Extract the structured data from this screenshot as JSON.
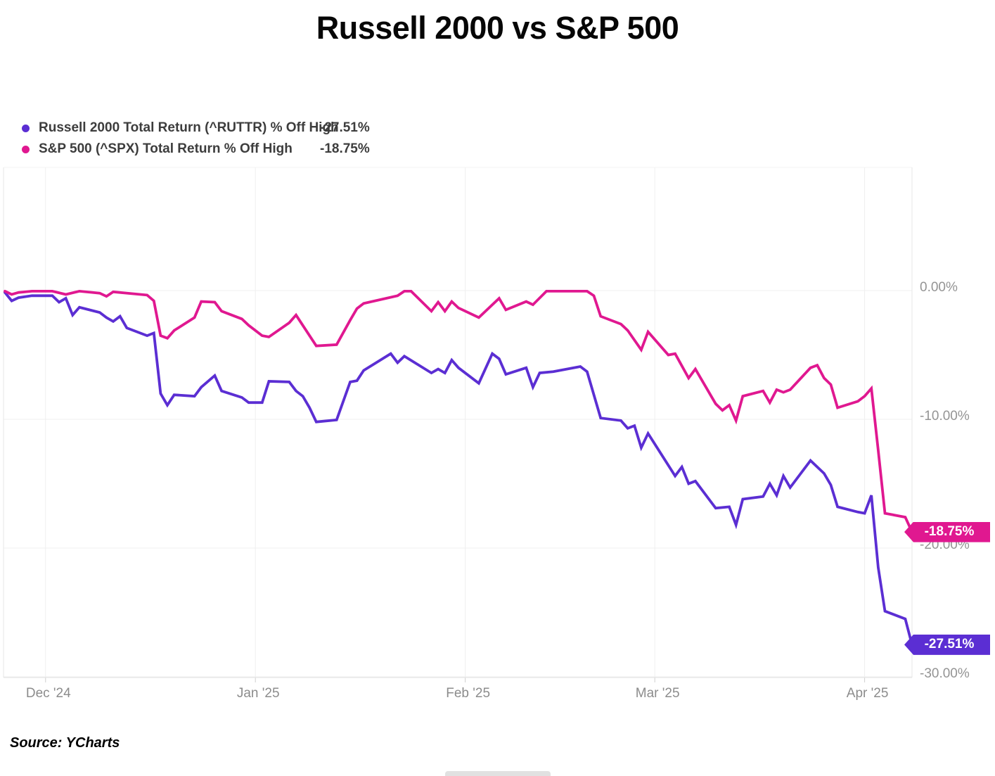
{
  "header": {
    "title": "Russell 2000 vs S&P 500"
  },
  "legend": {
    "items": [
      {
        "label": "Russell 2000 Total Return (^RUTTR) % Off High",
        "value": "-27.51%",
        "color": "#5b2ed3"
      },
      {
        "label": "S&P 500 (^SPX) Total Return % Off High",
        "value": "-18.75%",
        "color": "#e01890"
      }
    ]
  },
  "end_badges": [
    {
      "text": "-18.75%",
      "value": -18.75,
      "color": "#e01890"
    },
    {
      "text": "-27.51%",
      "value": -27.51,
      "color": "#5b2ed3"
    }
  ],
  "footer": {
    "source": "Source: YCharts"
  },
  "colors": {
    "russell_line": "#5b2ed3",
    "spx_line": "#e01890",
    "grid": "#efefef",
    "plot_border": "#e7e7e7",
    "axis_bottom": "#e2e2e2",
    "tick_stub": "#cfcfcf",
    "y_tick_text": "#949494",
    "x_tick_text": "#8c8c8c"
  },
  "chart_data": {
    "type": "line",
    "title": "Russell 2000 vs S&P 500",
    "grid": true,
    "legend_position": "top-left",
    "x_axis": {
      "range": [
        "2024-11-25",
        "2025-04-08"
      ],
      "ticks": [
        {
          "label": "Dec '24",
          "date": "2024-12-01"
        },
        {
          "label": "Jan '25",
          "date": "2025-01-01"
        },
        {
          "label": "Feb '25",
          "date": "2025-02-01"
        },
        {
          "label": "Mar '25",
          "date": "2025-03-01"
        },
        {
          "label": "Apr '25",
          "date": "2025-04-01"
        }
      ]
    },
    "y_axis": {
      "unit": "% off high",
      "max": 9.6,
      "min": -30.1,
      "ticks": [
        {
          "label": "0.00%",
          "value": 0
        },
        {
          "label": "-10.00%",
          "value": -10
        },
        {
          "label": "-20.00%",
          "value": -20
        },
        {
          "label": "-30.00%",
          "value": -30
        }
      ]
    },
    "series": [
      {
        "name": "Russell 2000 Total Return (^RUTTR) % Off High",
        "ticker": "^RUTTR",
        "color": "#5b2ed3",
        "last_value": -27.51,
        "points": [
          [
            "2024-11-25",
            -0.15
          ],
          [
            "2024-11-26",
            -0.8
          ],
          [
            "2024-11-27",
            -0.55
          ],
          [
            "2024-11-29",
            -0.4
          ],
          [
            "2024-12-02",
            -0.4
          ],
          [
            "2024-12-03",
            -0.9
          ],
          [
            "2024-12-04",
            -0.6
          ],
          [
            "2024-12-05",
            -1.9
          ],
          [
            "2024-12-06",
            -1.3
          ],
          [
            "2024-12-09",
            -1.7
          ],
          [
            "2024-12-10",
            -2.1
          ],
          [
            "2024-12-11",
            -2.4
          ],
          [
            "2024-12-12",
            -2.0
          ],
          [
            "2024-12-13",
            -2.9
          ],
          [
            "2024-12-16",
            -3.5
          ],
          [
            "2024-12-17",
            -3.3
          ],
          [
            "2024-12-18",
            -8.0
          ],
          [
            "2024-12-19",
            -8.9
          ],
          [
            "2024-12-20",
            -8.1
          ],
          [
            "2024-12-23",
            -8.2
          ],
          [
            "2024-12-24",
            -7.5
          ],
          [
            "2024-12-26",
            -6.6
          ],
          [
            "2024-12-27",
            -7.8
          ],
          [
            "2024-12-30",
            -8.3
          ],
          [
            "2024-12-31",
            -8.7
          ],
          [
            "2025-01-02",
            -8.7
          ],
          [
            "2025-01-03",
            -7.05
          ],
          [
            "2025-01-06",
            -7.1
          ],
          [
            "2025-01-07",
            -7.8
          ],
          [
            "2025-01-08",
            -8.2
          ],
          [
            "2025-01-09",
            -9.1
          ],
          [
            "2025-01-10",
            -10.2
          ],
          [
            "2025-01-13",
            -10.05
          ],
          [
            "2025-01-15",
            -7.1
          ],
          [
            "2025-01-16",
            -7.0
          ],
          [
            "2025-01-17",
            -6.2
          ],
          [
            "2025-01-21",
            -4.9
          ],
          [
            "2025-01-22",
            -5.6
          ],
          [
            "2025-01-23",
            -5.1
          ],
          [
            "2025-01-27",
            -6.4
          ],
          [
            "2025-01-28",
            -6.1
          ],
          [
            "2025-01-29",
            -6.4
          ],
          [
            "2025-01-30",
            -5.4
          ],
          [
            "2025-01-31",
            -6.0
          ],
          [
            "2025-02-03",
            -7.2
          ],
          [
            "2025-02-05",
            -4.9
          ],
          [
            "2025-02-06",
            -5.3
          ],
          [
            "2025-02-07",
            -6.5
          ],
          [
            "2025-02-10",
            -6.0
          ],
          [
            "2025-02-11",
            -7.5
          ],
          [
            "2025-02-12",
            -6.4
          ],
          [
            "2025-02-14",
            -6.3
          ],
          [
            "2025-02-18",
            -5.9
          ],
          [
            "2025-02-19",
            -6.3
          ],
          [
            "2025-02-21",
            -9.9
          ],
          [
            "2025-02-24",
            -10.1
          ],
          [
            "2025-02-25",
            -10.7
          ],
          [
            "2025-02-26",
            -10.5
          ],
          [
            "2025-02-27",
            -12.2
          ],
          [
            "2025-02-28",
            -11.1
          ],
          [
            "2025-03-04",
            -14.4
          ],
          [
            "2025-03-05",
            -13.7
          ],
          [
            "2025-03-06",
            -15.0
          ],
          [
            "2025-03-07",
            -14.8
          ],
          [
            "2025-03-10",
            -16.9
          ],
          [
            "2025-03-12",
            -16.8
          ],
          [
            "2025-03-13",
            -18.2
          ],
          [
            "2025-03-14",
            -16.2
          ],
          [
            "2025-03-17",
            -16.0
          ],
          [
            "2025-03-18",
            -15.0
          ],
          [
            "2025-03-19",
            -15.9
          ],
          [
            "2025-03-20",
            -14.4
          ],
          [
            "2025-03-21",
            -15.3
          ],
          [
            "2025-03-24",
            -13.2
          ],
          [
            "2025-03-26",
            -14.2
          ],
          [
            "2025-03-27",
            -15.1
          ],
          [
            "2025-03-28",
            -16.8
          ],
          [
            "2025-03-31",
            -17.2
          ],
          [
            "2025-04-01",
            -17.3
          ],
          [
            "2025-04-02",
            -15.9
          ],
          [
            "2025-04-03",
            -21.5
          ],
          [
            "2025-04-04",
            -24.9
          ],
          [
            "2025-04-07",
            -25.5
          ],
          [
            "2025-04-08",
            -27.51
          ]
        ]
      },
      {
        "name": "S&P 500 (^SPX) Total Return % Off High",
        "ticker": "^SPX",
        "color": "#e01890",
        "last_value": -18.75,
        "points": [
          [
            "2024-11-25",
            -0.05
          ],
          [
            "2024-11-26",
            -0.3
          ],
          [
            "2024-11-27",
            -0.15
          ],
          [
            "2024-11-29",
            -0.05
          ],
          [
            "2024-12-02",
            -0.05
          ],
          [
            "2024-12-04",
            -0.3
          ],
          [
            "2024-12-06",
            -0.05
          ],
          [
            "2024-12-09",
            -0.2
          ],
          [
            "2024-12-10",
            -0.45
          ],
          [
            "2024-12-11",
            -0.1
          ],
          [
            "2024-12-16",
            -0.35
          ],
          [
            "2024-12-17",
            -0.8
          ],
          [
            "2024-12-18",
            -3.5
          ],
          [
            "2024-12-19",
            -3.7
          ],
          [
            "2024-12-20",
            -3.1
          ],
          [
            "2024-12-23",
            -2.1
          ],
          [
            "2024-12-24",
            -0.85
          ],
          [
            "2024-12-26",
            -0.9
          ],
          [
            "2024-12-27",
            -1.6
          ],
          [
            "2024-12-30",
            -2.2
          ],
          [
            "2024-12-31",
            -2.7
          ],
          [
            "2025-01-02",
            -3.5
          ],
          [
            "2025-01-03",
            -3.6
          ],
          [
            "2025-01-06",
            -2.5
          ],
          [
            "2025-01-07",
            -1.9
          ],
          [
            "2025-01-08",
            -2.7
          ],
          [
            "2025-01-10",
            -4.3
          ],
          [
            "2025-01-13",
            -4.2
          ],
          [
            "2025-01-15",
            -2.3
          ],
          [
            "2025-01-16",
            -1.4
          ],
          [
            "2025-01-17",
            -1.0
          ],
          [
            "2025-01-22",
            -0.4
          ],
          [
            "2025-01-23",
            -0.05
          ],
          [
            "2025-01-24",
            -0.05
          ],
          [
            "2025-01-27",
            -1.6
          ],
          [
            "2025-01-28",
            -0.9
          ],
          [
            "2025-01-29",
            -1.6
          ],
          [
            "2025-01-30",
            -0.85
          ],
          [
            "2025-01-31",
            -1.35
          ],
          [
            "2025-02-03",
            -2.1
          ],
          [
            "2025-02-06",
            -0.6
          ],
          [
            "2025-02-07",
            -1.5
          ],
          [
            "2025-02-10",
            -0.85
          ],
          [
            "2025-02-11",
            -1.1
          ],
          [
            "2025-02-13",
            -0.05
          ],
          [
            "2025-02-19",
            -0.05
          ],
          [
            "2025-02-20",
            -0.4
          ],
          [
            "2025-02-21",
            -2.0
          ],
          [
            "2025-02-24",
            -2.6
          ],
          [
            "2025-02-25",
            -3.1
          ],
          [
            "2025-02-27",
            -4.6
          ],
          [
            "2025-02-28",
            -3.2
          ],
          [
            "2025-03-03",
            -5.0
          ],
          [
            "2025-03-04",
            -4.9
          ],
          [
            "2025-03-06",
            -6.8
          ],
          [
            "2025-03-07",
            -6.1
          ],
          [
            "2025-03-10",
            -8.8
          ],
          [
            "2025-03-11",
            -9.3
          ],
          [
            "2025-03-12",
            -8.9
          ],
          [
            "2025-03-13",
            -10.1
          ],
          [
            "2025-03-14",
            -8.2
          ],
          [
            "2025-03-17",
            -7.8
          ],
          [
            "2025-03-18",
            -8.7
          ],
          [
            "2025-03-19",
            -7.7
          ],
          [
            "2025-03-20",
            -7.9
          ],
          [
            "2025-03-21",
            -7.7
          ],
          [
            "2025-03-24",
            -6.0
          ],
          [
            "2025-03-25",
            -5.8
          ],
          [
            "2025-03-26",
            -6.8
          ],
          [
            "2025-03-27",
            -7.3
          ],
          [
            "2025-03-28",
            -9.1
          ],
          [
            "2025-03-31",
            -8.6
          ],
          [
            "2025-04-01",
            -8.2
          ],
          [
            "2025-04-02",
            -7.6
          ],
          [
            "2025-04-03",
            -12.4
          ],
          [
            "2025-04-04",
            -17.3
          ],
          [
            "2025-04-07",
            -17.6
          ],
          [
            "2025-04-08",
            -18.75
          ]
        ]
      }
    ]
  }
}
